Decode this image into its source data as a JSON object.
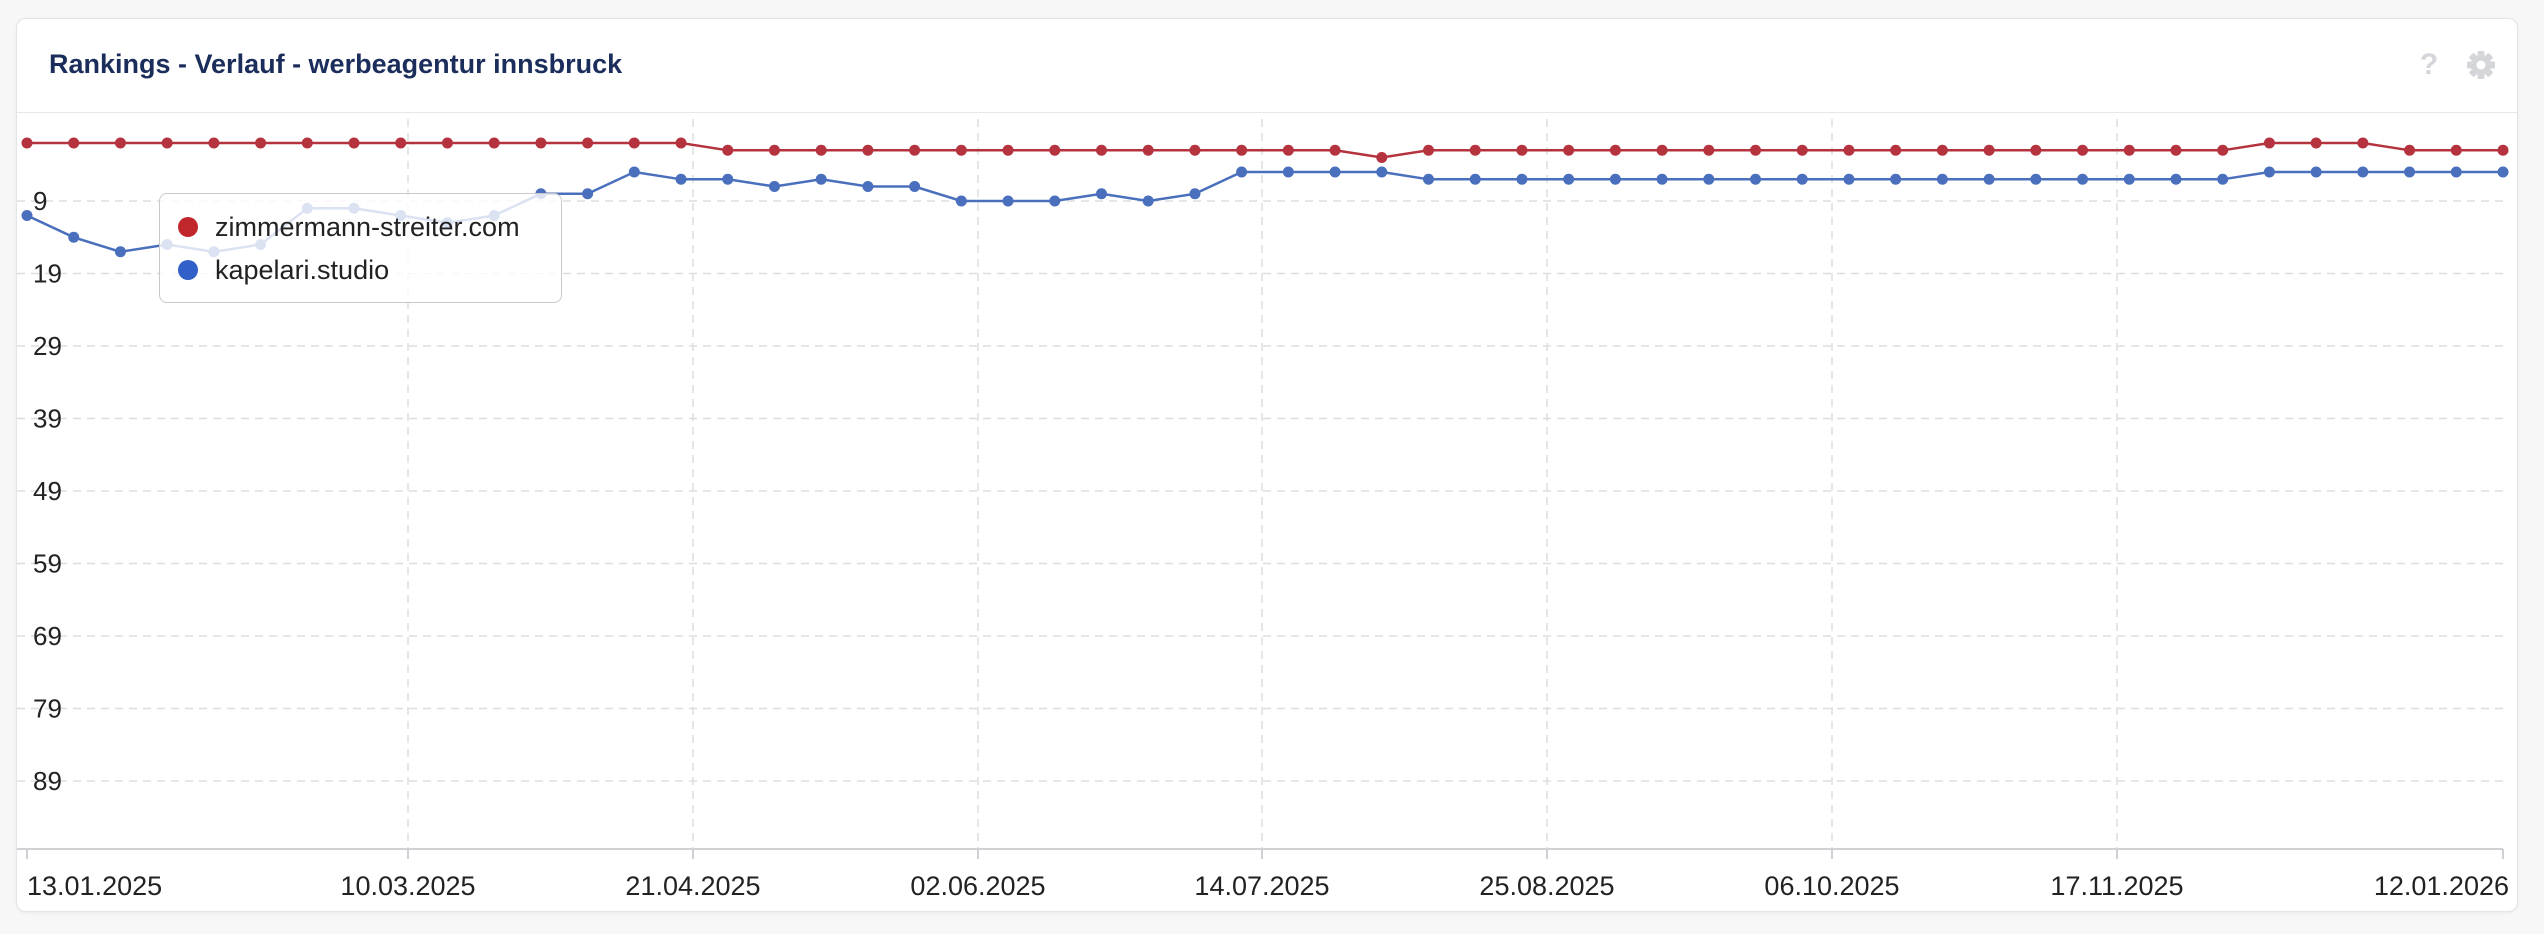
{
  "title": "Rankings - Verlauf - werbeagentur innsbruck",
  "icons": {
    "help": "help-icon",
    "settings": "gear-icon"
  },
  "colors": {
    "series1": "#b5323f",
    "series2": "#4a6fbd",
    "grid": "#dcdde0",
    "title": "#1b2d5b"
  },
  "chart_data": {
    "type": "line",
    "title": "Rankings - Verlauf - werbeagentur innsbruck",
    "y_axis": {
      "reversed": true,
      "min": 1,
      "max": 100,
      "ticks": [
        9,
        19,
        29,
        39,
        49,
        59,
        69,
        79,
        89
      ]
    },
    "x_axis": {
      "start": "13.01.2025",
      "end": "12.01.2026",
      "tick_labels": [
        "13.01.2025",
        "10.03.2025",
        "21.04.2025",
        "02.06.2025",
        "14.07.2025",
        "25.08.2025",
        "06.10.2025",
        "17.11.2025",
        "12.01.2026"
      ]
    },
    "grid": true,
    "legend_position": "top-left",
    "series": [
      {
        "name": "zimmermann-streiter.com",
        "color": "#b5323f",
        "values": [
          1,
          1,
          1,
          1,
          1,
          1,
          1,
          1,
          1,
          1,
          1,
          1,
          1,
          1,
          1,
          2,
          2,
          2,
          2,
          2,
          2,
          2,
          2,
          2,
          2,
          2,
          2,
          2,
          2,
          3,
          2,
          2,
          2,
          2,
          2,
          2,
          2,
          2,
          2,
          2,
          2,
          2,
          2,
          2,
          2,
          2,
          2,
          2,
          1,
          1,
          1,
          2,
          2,
          2
        ]
      },
      {
        "name": "kapelari.studio",
        "color": "#4a6fbd",
        "values": [
          11,
          14,
          16,
          15,
          16,
          15,
          10,
          10,
          11,
          12,
          11,
          8,
          8,
          5,
          6,
          6,
          7,
          6,
          7,
          7,
          9,
          9,
          9,
          8,
          9,
          8,
          5,
          5,
          5,
          5,
          6,
          6,
          6,
          6,
          6,
          6,
          6,
          6,
          6,
          6,
          6,
          6,
          6,
          6,
          6,
          6,
          6,
          6,
          5,
          5,
          5,
          5,
          5,
          5
        ]
      }
    ]
  }
}
